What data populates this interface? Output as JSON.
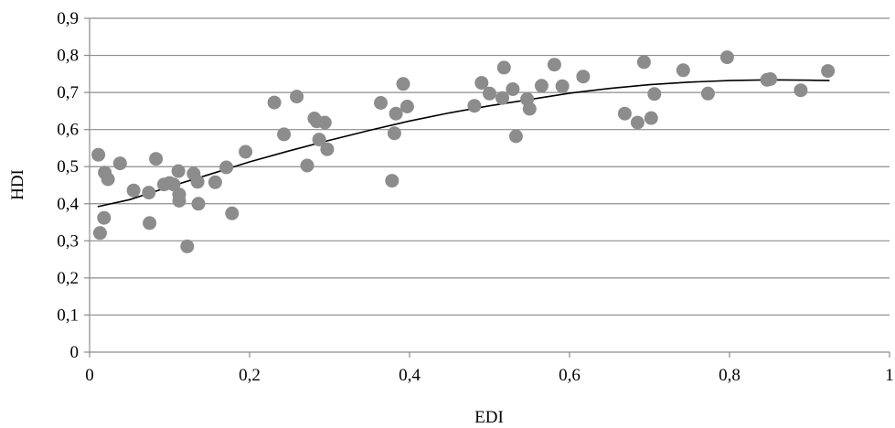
{
  "chart_data": {
    "type": "scatter",
    "title": "",
    "xlabel": "EDI",
    "ylabel": "HDI",
    "xlim": [
      0,
      1
    ],
    "ylim": [
      0,
      0.9
    ],
    "x_ticks": [
      "0",
      "0,2",
      "0,4",
      "0,6",
      "0,8",
      "1"
    ],
    "y_ticks": [
      "0",
      "0,1",
      "0,2",
      "0,3",
      "0,4",
      "0,5",
      "0,6",
      "0,7",
      "0,8",
      "0,9"
    ],
    "x_tick_values": [
      0,
      0.2,
      0.4,
      0.6,
      0.8,
      1
    ],
    "y_tick_values": [
      0,
      0.1,
      0.2,
      0.3,
      0.4,
      0.5,
      0.6,
      0.7,
      0.8,
      0.9
    ],
    "grid": "horizontal",
    "legend": "none",
    "colors": {
      "marker": "#8c8c8c",
      "trendline": "#000000",
      "grid": "#8c8c8c",
      "axis": "#8c8c8c"
    },
    "series": [
      {
        "points": [
          [
            0.011,
            0.532
          ],
          [
            0.013,
            0.321
          ],
          [
            0.018,
            0.362
          ],
          [
            0.019,
            0.484
          ],
          [
            0.023,
            0.466
          ],
          [
            0.038,
            0.509
          ],
          [
            0.055,
            0.436
          ],
          [
            0.074,
            0.43
          ],
          [
            0.075,
            0.348
          ],
          [
            0.083,
            0.521
          ],
          [
            0.093,
            0.452
          ],
          [
            0.1,
            0.456
          ],
          [
            0.105,
            0.452
          ],
          [
            0.111,
            0.488
          ],
          [
            0.112,
            0.425
          ],
          [
            0.112,
            0.408
          ],
          [
            0.122,
            0.285
          ],
          [
            0.13,
            0.481
          ],
          [
            0.135,
            0.459
          ],
          [
            0.136,
            0.4
          ],
          [
            0.157,
            0.458
          ],
          [
            0.171,
            0.498
          ],
          [
            0.178,
            0.374
          ],
          [
            0.195,
            0.54
          ],
          [
            0.231,
            0.673
          ],
          [
            0.243,
            0.587
          ],
          [
            0.259,
            0.689
          ],
          [
            0.272,
            0.503
          ],
          [
            0.281,
            0.63
          ],
          [
            0.284,
            0.622
          ],
          [
            0.287,
            0.573
          ],
          [
            0.294,
            0.619
          ],
          [
            0.297,
            0.547
          ],
          [
            0.364,
            0.672
          ],
          [
            0.378,
            0.462
          ],
          [
            0.381,
            0.59
          ],
          [
            0.383,
            0.643
          ],
          [
            0.392,
            0.723
          ],
          [
            0.397,
            0.662
          ],
          [
            0.481,
            0.664
          ],
          [
            0.49,
            0.726
          ],
          [
            0.5,
            0.697
          ],
          [
            0.516,
            0.685
          ],
          [
            0.518,
            0.767
          ],
          [
            0.529,
            0.709
          ],
          [
            0.533,
            0.582
          ],
          [
            0.547,
            0.682
          ],
          [
            0.55,
            0.656
          ],
          [
            0.565,
            0.718
          ],
          [
            0.581,
            0.775
          ],
          [
            0.591,
            0.717
          ],
          [
            0.617,
            0.743
          ],
          [
            0.669,
            0.643
          ],
          [
            0.685,
            0.619
          ],
          [
            0.693,
            0.782
          ],
          [
            0.702,
            0.631
          ],
          [
            0.706,
            0.696
          ],
          [
            0.742,
            0.76
          ],
          [
            0.773,
            0.697
          ],
          [
            0.797,
            0.795
          ],
          [
            0.847,
            0.734
          ],
          [
            0.851,
            0.736
          ],
          [
            0.889,
            0.706
          ],
          [
            0.923,
            0.758
          ]
        ]
      }
    ],
    "trendline": {
      "type": "polynomial",
      "x": [
        0.01,
        0.05,
        0.1,
        0.15,
        0.2,
        0.25,
        0.3,
        0.35,
        0.4,
        0.45,
        0.5,
        0.55,
        0.6,
        0.65,
        0.7,
        0.75,
        0.8,
        0.85,
        0.9,
        0.925
      ],
      "y": [
        0.392,
        0.411,
        0.446,
        0.479,
        0.513,
        0.543,
        0.571,
        0.598,
        0.623,
        0.645,
        0.664,
        0.681,
        0.698,
        0.711,
        0.721,
        0.728,
        0.732,
        0.734,
        0.733,
        0.732
      ]
    }
  }
}
